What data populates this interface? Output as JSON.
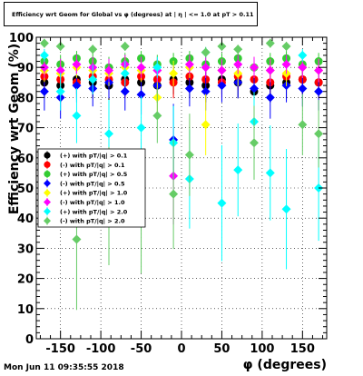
{
  "title": "Efficiency wrt Geom for Global vs φ (degrees) at | η | <= 1.0 at pT > 0.11",
  "timestamp": "Mon Jun 11 09:35:55 2018",
  "chart_data": {
    "type": "scatter",
    "title": "Efficiency wrt Geom for Global vs φ (degrees) at | η | <= 1.0 at pT > 0.11",
    "xlabel": "φ (degrees)",
    "ylabel": "Efficiency wrt Geom (%)",
    "xlim": [
      -180,
      180
    ],
    "ylim": [
      0,
      100
    ],
    "x_ticks": [
      "-150",
      "-100",
      "-50",
      "0",
      "50",
      "100",
      "150"
    ],
    "y_ticks": [
      "0",
      "10",
      "20",
      "30",
      "40",
      "50",
      "60",
      "70",
      "80",
      "90",
      "100"
    ],
    "grid": true,
    "legend_position": "left-middle",
    "series": [
      {
        "name": "(+) with pT/|q| > 0.1",
        "color": "#000000",
        "marker": "circle",
        "x": [
          -170,
          -150,
          -130,
          -110,
          -90,
          -70,
          -50,
          -30,
          -10,
          10,
          30,
          50,
          70,
          90,
          110,
          130,
          150,
          170
        ],
        "y": [
          85,
          84,
          86,
          85,
          84,
          86,
          85,
          84,
          86,
          85,
          84,
          86,
          85,
          82,
          84,
          85,
          86,
          85
        ]
      },
      {
        "name": "(-) with pT/|q| > 0.1",
        "color": "#ff0000",
        "marker": "circle",
        "x": [
          -170,
          -150,
          -130,
          -110,
          -90,
          -70,
          -50,
          -30,
          -10,
          10,
          30,
          50,
          70,
          90,
          110,
          130,
          150,
          170
        ],
        "y": [
          87,
          86,
          85,
          87,
          86,
          85,
          87,
          86,
          85,
          87,
          86,
          85,
          87,
          86,
          85,
          87,
          86,
          85
        ]
      },
      {
        "name": "(+) with pT/|q| > 0.5",
        "color": "#33cc33",
        "marker": "circle",
        "x": [
          -170,
          -150,
          -130,
          -110,
          -90,
          -70,
          -50,
          -30,
          -10,
          10,
          30,
          50,
          70,
          90,
          110,
          130,
          150,
          170
        ],
        "y": [
          92,
          91,
          93,
          92,
          90,
          92,
          93,
          91,
          92,
          93,
          91,
          92,
          93,
          90,
          92,
          93,
          91,
          92
        ]
      },
      {
        "name": "(-) with pT/|q| > 0.5",
        "color": "#0000ff",
        "marker": "diamond",
        "x": [
          -170,
          -150,
          -130,
          -110,
          -90,
          -70,
          -50,
          -30,
          -10,
          10,
          30,
          50,
          70,
          90,
          110,
          130,
          150,
          170
        ],
        "y": [
          82,
          80,
          84,
          83,
          85,
          82,
          81,
          84,
          66,
          83,
          82,
          84,
          85,
          83,
          80,
          84,
          83,
          82
        ]
      },
      {
        "name": "(+) with pT/|q| > 1.0",
        "color": "#ffff00",
        "marker": "diamond",
        "x": [
          -170,
          -150,
          -130,
          -110,
          -90,
          -70,
          -50,
          -30,
          -10,
          10,
          30,
          50,
          70,
          90,
          110,
          130,
          150,
          170
        ],
        "y": [
          89,
          88,
          90,
          89,
          88,
          90,
          89,
          80,
          88,
          90,
          71,
          89,
          88,
          90,
          89,
          88,
          90,
          89
        ]
      },
      {
        "name": "(-) with pT/|q| > 1.0",
        "color": "#ff00ff",
        "marker": "diamond",
        "x": [
          -170,
          -150,
          -130,
          -110,
          -90,
          -70,
          -50,
          -30,
          -10,
          10,
          30,
          50,
          70,
          90,
          110,
          130,
          150,
          170
        ],
        "y": [
          90,
          89,
          91,
          90,
          89,
          91,
          90,
          89,
          54,
          91,
          90,
          89,
          91,
          90,
          89,
          91,
          90,
          89
        ]
      },
      {
        "name": "(+) with pT/|q| > 2.0",
        "color": "#00ffff",
        "marker": "diamond",
        "x": [
          -170,
          -150,
          -130,
          -110,
          -90,
          -70,
          -50,
          -30,
          -10,
          10,
          30,
          50,
          70,
          90,
          110,
          130,
          150,
          170
        ],
        "y": [
          94,
          82,
          74,
          86,
          68,
          88,
          70,
          90,
          65,
          53,
          95,
          45,
          56,
          72,
          55,
          43,
          94,
          50
        ]
      },
      {
        "name": "(-) with pT/|q| > 2.0",
        "color": "#66cc66",
        "marker": "diamond",
        "x": [
          -170,
          -150,
          -130,
          -110,
          -90,
          -70,
          -50,
          -30,
          -10,
          10,
          30,
          50,
          70,
          90,
          110,
          130,
          150,
          170
        ],
        "y": [
          98,
          97,
          33,
          96,
          44,
          97,
          42,
          74,
          48,
          61,
          95,
          97,
          96,
          65,
          98,
          97,
          71,
          68
        ]
      }
    ]
  }
}
